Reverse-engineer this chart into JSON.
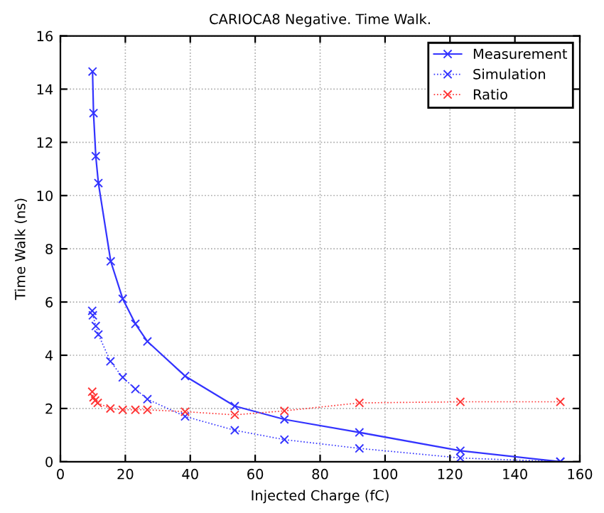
{
  "chart_data": {
    "type": "line",
    "title": "CARIOCA8 Negative. Time Walk.",
    "xlabel": "Injected Charge (fC)",
    "ylabel": "Time Walk (ns)",
    "xlim": [
      0,
      160
    ],
    "xticks": [
      0,
      20,
      40,
      60,
      80,
      100,
      120,
      140,
      160
    ],
    "ylim": [
      0,
      16
    ],
    "yticks": [
      0,
      2,
      4,
      6,
      8,
      10,
      12,
      14,
      16
    ],
    "grid": true,
    "legend": "top right",
    "marker": "cross",
    "series": [
      {
        "name": "Measurement",
        "color": "#3333ff",
        "line_style": "solid",
        "x": [
          9.9,
          10.2,
          10.9,
          11.7,
          15.5,
          19.2,
          23.1,
          26.8,
          38.4,
          53.7,
          69,
          92.1,
          123.2,
          154
        ],
        "values": [
          14.66,
          13.1,
          11.48,
          10.47,
          7.53,
          6.12,
          5.18,
          4.52,
          3.22,
          2.09,
          1.59,
          1.1,
          0.41,
          0
        ]
      },
      {
        "name": "Simulation",
        "color": "#3333ff",
        "line_style": "dotted",
        "x": [
          9.8,
          10.0,
          10.9,
          11.7,
          15.4,
          19.2,
          23.1,
          26.8,
          38.4,
          53.7,
          69,
          92.1,
          123.2,
          154
        ],
        "values": [
          5.67,
          5.5,
          5.1,
          4.78,
          3.77,
          3.17,
          2.73,
          2.35,
          1.7,
          1.18,
          0.83,
          0.5,
          0.14,
          0
        ]
      },
      {
        "name": "Ratio",
        "color": "#ff3333",
        "line_style": "dotted",
        "x": [
          9.8,
          10.2,
          10.7,
          11.5,
          15.4,
          19.2,
          23.1,
          26.8,
          38.4,
          53.7,
          69,
          92.1,
          123.2,
          154
        ],
        "values": [
          2.63,
          2.42,
          2.3,
          2.21,
          2.0,
          1.95,
          1.95,
          1.95,
          1.88,
          1.76,
          1.91,
          2.21,
          2.25,
          2.25
        ]
      }
    ]
  }
}
